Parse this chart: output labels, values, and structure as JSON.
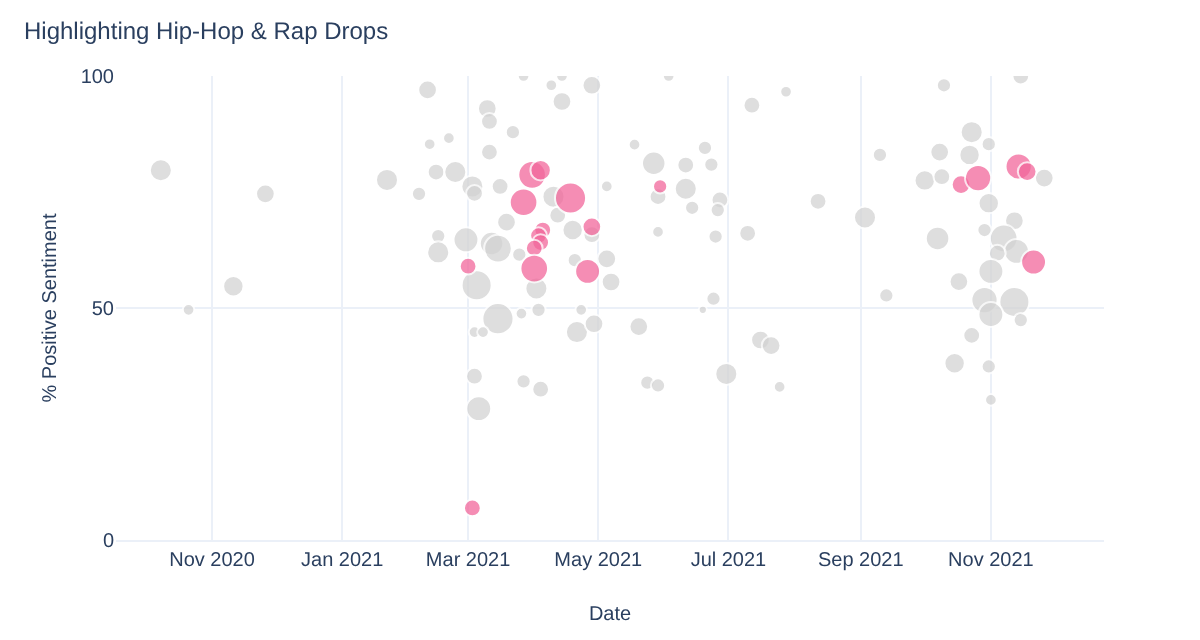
{
  "chart_data": {
    "type": "bubble",
    "title": "Highlighting Hip-Hop & Rap Drops",
    "xlabel": "Date",
    "ylabel": "% Positive Sentiment",
    "xlim": [
      "2020-09-17",
      "2021-12-24"
    ],
    "xticks": [
      {
        "value": "2020-11-01",
        "label": "Nov 2020"
      },
      {
        "value": "2021-01-01",
        "label": "Jan 2021"
      },
      {
        "value": "2021-03-01",
        "label": "Mar 2021"
      },
      {
        "value": "2021-05-01",
        "label": "May 2021"
      },
      {
        "value": "2021-07-01",
        "label": "Jul 2021"
      },
      {
        "value": "2021-09-01",
        "label": "Sep 2021"
      },
      {
        "value": "2021-11-01",
        "label": "Nov 2021"
      }
    ],
    "ylim": [
      0,
      100
    ],
    "yticks": [
      0,
      50,
      100
    ],
    "grid": true,
    "marker": "circle",
    "series": [
      {
        "color": "#d3d3d3",
        "x": [
          "2020-10-08",
          "2020-10-21",
          "2020-11-11",
          "2020-11-26",
          "2021-01-22",
          "2021-02-10",
          "2021-02-11",
          "2021-02-20",
          "2021-02-14",
          "2021-02-23",
          "2021-02-06",
          "2021-02-15",
          "2021-02-15",
          "2021-03-04",
          "2021-03-27",
          "2021-03-10",
          "2021-03-11",
          "2021-04-14",
          "2021-04-28",
          "2021-03-22",
          "2021-03-11",
          "2021-03-03",
          "2021-03-16",
          "2021-03-04",
          "2021-05-27",
          "2021-06-11",
          "2021-06-11",
          "2021-05-29",
          "2021-06-20",
          "2021-06-23",
          "2021-06-27",
          "2021-06-14",
          "2021-06-26",
          "2021-07-12",
          "2021-07-10",
          "2021-06-25",
          "2021-05-29",
          "2021-05-05",
          "2021-04-10",
          "2021-03-19",
          "2021-04-12",
          "2021-04-19",
          "2021-04-28",
          "2021-02-28",
          "2021-03-12",
          "2021-03-15",
          "2021-03-25",
          "2021-05-05",
          "2021-04-20",
          "2021-03-05",
          "2021-04-02",
          "2021-05-07",
          "2021-03-15",
          "2021-04-03",
          "2021-03-26",
          "2021-04-21",
          "2021-04-29",
          "2021-05-20",
          "2021-03-04",
          "2021-03-08",
          "2021-04-23",
          "2021-03-27",
          "2021-04-04",
          "2021-05-24",
          "2021-05-29",
          "2021-03-06",
          "2021-06-30",
          "2021-07-16",
          "2021-07-21",
          "2021-06-24",
          "2021-06-19",
          "2021-04-14",
          "2021-06-03",
          "2021-05-18",
          "2021-04-09",
          "2021-07-28",
          "2021-10-10",
          "2021-11-15",
          "2021-10-23",
          "2021-10-08",
          "2021-10-22",
          "2021-10-31",
          "2021-09-10",
          "2021-10-01",
          "2021-10-09",
          "2021-11-26",
          "2021-08-12",
          "2021-10-31",
          "2021-09-03",
          "2021-11-12",
          "2021-10-07",
          "2021-11-07",
          "2021-10-29",
          "2021-11-13",
          "2021-11-04",
          "2021-11-01",
          "2021-10-17",
          "2021-09-13",
          "2021-10-29",
          "2021-11-12",
          "2021-11-01",
          "2021-11-15",
          "2021-10-23",
          "2021-10-15",
          "2021-10-31",
          "2021-11-01",
          "2021-07-25"
        ],
        "values": [
          79.7,
          49.6,
          54.7,
          74.6,
          77.6,
          97,
          85.3,
          86.6,
          79.3,
          79.3,
          74.6,
          65.5,
          62,
          35.3,
          100,
          93,
          90.2,
          94.5,
          98,
          87.9,
          83.6,
          76.2,
          76.2,
          74.7,
          81.2,
          80.8,
          75.7,
          74,
          84.5,
          80.9,
          73.3,
          71.6,
          71.1,
          93.7,
          66.1,
          65.4,
          66.4,
          76.2,
          74,
          68.5,
          70,
          66.8,
          65.8,
          64.7,
          63.9,
          62.8,
          61.5,
          60.6,
          60.3,
          54.9,
          54.2,
          55.6,
          47.7,
          49.6,
          48.8,
          44.8,
          46.6,
          46,
          44.8,
          44.8,
          49.6,
          34.2,
          32.5,
          33.9,
          33.3,
          28.3,
          35.8,
          43.1,
          41.9,
          52,
          49.6,
          100,
          100,
          85.2,
          98,
          96.6,
          98,
          100,
          87.9,
          83.6,
          83,
          85.3,
          83,
          77.5,
          78.3,
          78,
          73,
          72.6,
          69.5,
          68.8,
          65,
          65,
          66.8,
          62.2,
          61.8,
          57.9,
          55.7,
          52.7,
          51.7,
          51.3,
          48.6,
          47.4,
          44.1,
          38.1,
          37.4,
          30.2,
          33
        ],
        "sizes": [
          0.5,
          0.14,
          0.43,
          0.36,
          0.5,
          0.36,
          0.14,
          0.14,
          0.29,
          0.5,
          0.21,
          0.21,
          0.5,
          0.29,
          0.14,
          0.36,
          0.29,
          0.36,
          0.36,
          0.21,
          0.29,
          0.5,
          0.29,
          0.29,
          0.57,
          0.29,
          0.5,
          0.29,
          0.21,
          0.21,
          0.29,
          0.21,
          0.21,
          0.29,
          0.29,
          0.21,
          0.14,
          0.14,
          0.5,
          0.36,
          0.29,
          0.43,
          0.29,
          0.64,
          0.57,
          0.79,
          0.21,
          0.36,
          0.21,
          0.93,
          0.5,
          0.36,
          1,
          0.21,
          0.14,
          0.5,
          0.36,
          0.36,
          0.14,
          0.14,
          0.14,
          0.21,
          0.29,
          0.21,
          0.21,
          0.64,
          0.5,
          0.36,
          0.36,
          0.21,
          0.07,
          0.14,
          0.14,
          0.14,
          0.14,
          0.14,
          0.21,
          0.29,
          0.5,
          0.36,
          0.43,
          0.21,
          0.21,
          0.43,
          0.29,
          0.36,
          0.29,
          0.43,
          0.5,
          0.36,
          0.57,
          0.79,
          0.21,
          0.64,
          0.29,
          0.64,
          0.36,
          0.21,
          0.71,
          0.93,
          0.64,
          0.21,
          0.29,
          0.43,
          0.21,
          0.14,
          0.14
        ]
      },
      {
        "color": "#f2679b",
        "x": [
          "2021-03-01",
          "2021-03-03",
          "2021-03-31",
          "2021-04-04",
          "2021-03-27",
          "2021-04-18",
          "2021-04-28",
          "2021-04-05",
          "2021-04-03",
          "2021-04-04",
          "2021-04-01",
          "2021-04-01",
          "2021-04-26",
          "2021-05-30",
          "2021-10-18",
          "2021-10-26",
          "2021-11-14",
          "2021-11-18",
          "2021-11-21"
        ],
        "values": [
          59,
          6.9,
          78.7,
          79.7,
          72.8,
          73.7,
          67.5,
          66.8,
          65.6,
          64.1,
          62.9,
          58.5,
          57.9,
          76.2,
          76.6,
          78,
          80.5,
          79.4,
          59.9
        ],
        "sizes": [
          0.29,
          0.29,
          0.79,
          0.43,
          0.79,
          1,
          0.36,
          0.29,
          0.29,
          0.29,
          0.29,
          0.79,
          0.64,
          0.21,
          0.36,
          0.71,
          0.71,
          0.36,
          0.64
        ]
      }
    ]
  }
}
